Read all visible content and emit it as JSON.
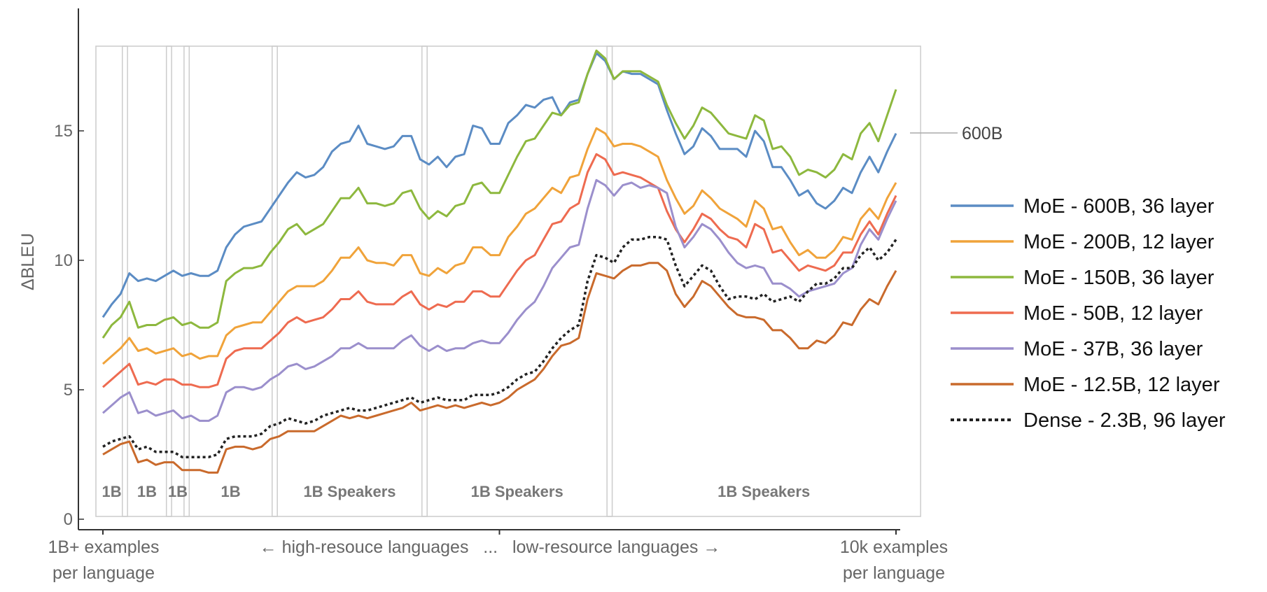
{
  "chart_data": {
    "type": "line",
    "title": "",
    "ylabel": "ΔBLEU",
    "ylim": [
      0,
      19
    ],
    "yticks": [
      0,
      5,
      10,
      15
    ],
    "x_axis": {
      "left_label_line1": "1B+ examples",
      "left_label_line2": "per language",
      "center_label": "← high-resouce languages   ...   low-resource languages →",
      "right_label_line1": "10k examples",
      "right_label_line2": "per language"
    },
    "callout": "600B",
    "groups": [
      {
        "label": "1B",
        "start": 0,
        "end": 2
      },
      {
        "label": "1B",
        "start": 3,
        "end": 7
      },
      {
        "label": "1B",
        "start": 8,
        "end": 9
      },
      {
        "label": "1B",
        "start": 10,
        "end": 19
      },
      {
        "label": "1B Speakers",
        "start": 20,
        "end": 36
      },
      {
        "label": "1B Speakers",
        "start": 37,
        "end": 57
      },
      {
        "label": "1B Speakers",
        "start": 58,
        "end": 92
      }
    ],
    "series": [
      {
        "name": "MoE - 600B, 36 layer",
        "color": "#5B8CC4",
        "dashed": false,
        "values": [
          7.8,
          8.3,
          8.7,
          9.5,
          9.2,
          9.3,
          9.2,
          9.4,
          9.6,
          9.4,
          9.5,
          9.4,
          9.4,
          9.6,
          10.5,
          11.0,
          11.3,
          11.4,
          11.5,
          12.0,
          12.5,
          13.0,
          13.4,
          13.2,
          13.3,
          13.6,
          14.2,
          14.5,
          14.6,
          15.2,
          14.5,
          14.4,
          14.3,
          14.4,
          14.8,
          14.8,
          13.9,
          13.7,
          14.0,
          13.6,
          14.0,
          14.1,
          15.2,
          15.1,
          14.5,
          14.5,
          15.3,
          15.6,
          16.0,
          15.9,
          16.2,
          16.3,
          15.6,
          16.1,
          16.2,
          17.2,
          18.0,
          17.7,
          17.0,
          17.3,
          17.2,
          17.2,
          17.0,
          16.8,
          15.8,
          14.9,
          14.1,
          14.4,
          15.1,
          14.8,
          14.3,
          14.3,
          14.3,
          14.0,
          15.0,
          14.6,
          13.6,
          13.6,
          13.1,
          12.5,
          12.7,
          12.2,
          12.0,
          12.3,
          12.8,
          12.6,
          13.4,
          14.0,
          13.4,
          14.2,
          14.9
        ]
      },
      {
        "name": "MoE - 200B, 12 layer",
        "color": "#F0A33A",
        "dashed": false,
        "values": [
          6.0,
          6.3,
          6.6,
          7.0,
          6.5,
          6.6,
          6.4,
          6.5,
          6.6,
          6.3,
          6.4,
          6.2,
          6.3,
          6.3,
          7.1,
          7.4,
          7.5,
          7.6,
          7.6,
          8.0,
          8.4,
          8.8,
          9.0,
          9.0,
          9.0,
          9.2,
          9.6,
          10.1,
          10.1,
          10.5,
          10.0,
          9.9,
          9.9,
          9.8,
          10.2,
          10.2,
          9.5,
          9.4,
          9.7,
          9.5,
          9.8,
          9.9,
          10.5,
          10.5,
          10.2,
          10.2,
          10.9,
          11.3,
          11.8,
          12.0,
          12.4,
          12.8,
          12.6,
          13.2,
          13.3,
          14.3,
          15.1,
          14.9,
          14.4,
          14.5,
          14.5,
          14.4,
          14.2,
          14.0,
          13.1,
          12.4,
          11.8,
          12.1,
          12.7,
          12.4,
          12.0,
          11.8,
          11.6,
          11.3,
          12.3,
          12.0,
          11.2,
          11.3,
          10.7,
          10.2,
          10.4,
          10.1,
          10.1,
          10.4,
          10.9,
          10.8,
          11.6,
          12.0,
          11.6,
          12.4,
          13.0
        ]
      },
      {
        "name": "MoE - 150B, 36 layer",
        "color": "#8DB83E",
        "dashed": false,
        "values": [
          7.0,
          7.5,
          7.8,
          8.4,
          7.4,
          7.5,
          7.5,
          7.7,
          7.8,
          7.5,
          7.6,
          7.4,
          7.4,
          7.6,
          9.2,
          9.5,
          9.7,
          9.7,
          9.8,
          10.3,
          10.7,
          11.2,
          11.4,
          11.0,
          11.2,
          11.4,
          11.9,
          12.4,
          12.4,
          12.8,
          12.2,
          12.2,
          12.1,
          12.2,
          12.6,
          12.7,
          12.0,
          11.6,
          11.9,
          11.7,
          12.1,
          12.2,
          12.9,
          13.0,
          12.6,
          12.6,
          13.3,
          14.0,
          14.6,
          14.7,
          15.2,
          15.7,
          15.6,
          16.0,
          16.1,
          17.2,
          18.1,
          17.8,
          17.0,
          17.3,
          17.3,
          17.3,
          17.1,
          16.9,
          16.0,
          15.3,
          14.7,
          15.2,
          15.9,
          15.7,
          15.3,
          14.9,
          14.8,
          14.7,
          15.6,
          15.4,
          14.3,
          14.4,
          14.0,
          13.3,
          13.5,
          13.4,
          13.2,
          13.5,
          14.1,
          13.9,
          14.9,
          15.3,
          14.6,
          15.6,
          16.6
        ]
      },
      {
        "name": "MoE - 50B, 12 layer",
        "color": "#EE6B50",
        "dashed": false,
        "values": [
          5.1,
          5.4,
          5.7,
          6.0,
          5.2,
          5.3,
          5.2,
          5.4,
          5.4,
          5.2,
          5.2,
          5.1,
          5.1,
          5.2,
          6.2,
          6.5,
          6.6,
          6.6,
          6.6,
          6.9,
          7.2,
          7.6,
          7.8,
          7.6,
          7.7,
          7.8,
          8.1,
          8.5,
          8.5,
          8.8,
          8.4,
          8.3,
          8.3,
          8.3,
          8.6,
          8.8,
          8.3,
          8.1,
          8.3,
          8.2,
          8.4,
          8.4,
          8.8,
          8.8,
          8.6,
          8.6,
          9.1,
          9.6,
          10.0,
          10.2,
          10.8,
          11.4,
          11.5,
          12.0,
          12.2,
          13.4,
          14.1,
          13.9,
          13.3,
          13.4,
          13.3,
          13.2,
          13.0,
          12.8,
          11.9,
          11.2,
          10.7,
          11.2,
          11.8,
          11.6,
          11.2,
          10.9,
          10.8,
          10.5,
          11.4,
          11.2,
          10.3,
          10.4,
          10.0,
          9.6,
          9.8,
          9.7,
          9.6,
          9.8,
          10.3,
          10.3,
          11.0,
          11.5,
          11.0,
          11.8,
          12.5
        ]
      },
      {
        "name": "MoE - 37B, 36 layer",
        "color": "#9B8FCC",
        "dashed": false,
        "values": [
          4.1,
          4.4,
          4.7,
          4.9,
          4.1,
          4.2,
          4.0,
          4.1,
          4.2,
          3.9,
          4.0,
          3.8,
          3.8,
          4.0,
          4.9,
          5.1,
          5.1,
          5.0,
          5.1,
          5.4,
          5.6,
          5.9,
          6.0,
          5.8,
          5.9,
          6.1,
          6.3,
          6.6,
          6.6,
          6.8,
          6.6,
          6.6,
          6.6,
          6.6,
          6.9,
          7.1,
          6.7,
          6.5,
          6.7,
          6.5,
          6.6,
          6.6,
          6.8,
          6.9,
          6.8,
          6.8,
          7.2,
          7.7,
          8.1,
          8.4,
          9.0,
          9.7,
          10.1,
          10.5,
          10.6,
          12.0,
          13.1,
          12.9,
          12.5,
          12.9,
          13.0,
          12.8,
          12.9,
          12.8,
          12.6,
          11.3,
          10.5,
          10.9,
          11.4,
          11.2,
          10.8,
          10.3,
          9.9,
          9.7,
          9.8,
          9.7,
          9.1,
          9.1,
          8.9,
          8.6,
          8.8,
          8.9,
          9.0,
          9.1,
          9.5,
          9.7,
          10.6,
          11.2,
          10.8,
          11.6,
          12.3
        ]
      },
      {
        "name": "MoE - 12.5B, 12 layer",
        "color": "#C96A2C",
        "dashed": false,
        "values": [
          2.5,
          2.7,
          2.9,
          3.0,
          2.2,
          2.3,
          2.1,
          2.2,
          2.2,
          1.9,
          1.9,
          1.9,
          1.8,
          1.8,
          2.7,
          2.8,
          2.8,
          2.7,
          2.8,
          3.1,
          3.2,
          3.4,
          3.4,
          3.4,
          3.4,
          3.6,
          3.8,
          4.0,
          3.9,
          4.0,
          3.9,
          4.0,
          4.1,
          4.2,
          4.3,
          4.5,
          4.2,
          4.3,
          4.4,
          4.3,
          4.4,
          4.3,
          4.4,
          4.5,
          4.4,
          4.5,
          4.7,
          5.0,
          5.2,
          5.4,
          5.8,
          6.3,
          6.7,
          6.8,
          7.0,
          8.5,
          9.5,
          9.4,
          9.3,
          9.6,
          9.8,
          9.8,
          9.9,
          9.9,
          9.6,
          8.7,
          8.2,
          8.6,
          9.2,
          9.0,
          8.6,
          8.2,
          7.9,
          7.8,
          7.8,
          7.7,
          7.3,
          7.3,
          7.0,
          6.6,
          6.6,
          6.9,
          6.8,
          7.1,
          7.6,
          7.5,
          8.1,
          8.5,
          8.3,
          9.0,
          9.6
        ]
      },
      {
        "name": "Dense - 2.3B, 96 layer",
        "color": "#222222",
        "dashed": true,
        "values": [
          2.8,
          3.0,
          3.1,
          3.2,
          2.7,
          2.8,
          2.6,
          2.6,
          2.6,
          2.4,
          2.4,
          2.4,
          2.4,
          2.5,
          3.1,
          3.2,
          3.2,
          3.2,
          3.3,
          3.6,
          3.7,
          3.9,
          3.8,
          3.7,
          3.8,
          4.0,
          4.1,
          4.2,
          4.3,
          4.2,
          4.2,
          4.3,
          4.4,
          4.5,
          4.6,
          4.7,
          4.5,
          4.6,
          4.7,
          4.6,
          4.6,
          4.6,
          4.8,
          4.8,
          4.8,
          4.9,
          5.1,
          5.4,
          5.6,
          5.7,
          6.1,
          6.6,
          7.0,
          7.3,
          7.5,
          9.2,
          10.2,
          10.1,
          9.9,
          10.5,
          10.8,
          10.8,
          10.9,
          10.9,
          10.8,
          9.8,
          9.0,
          9.4,
          9.8,
          9.6,
          9.0,
          8.5,
          8.6,
          8.6,
          8.5,
          8.7,
          8.4,
          8.5,
          8.6,
          8.4,
          8.8,
          9.1,
          9.1,
          9.3,
          9.7,
          9.7,
          10.2,
          10.5,
          10.0,
          10.3,
          10.8
        ]
      }
    ]
  }
}
